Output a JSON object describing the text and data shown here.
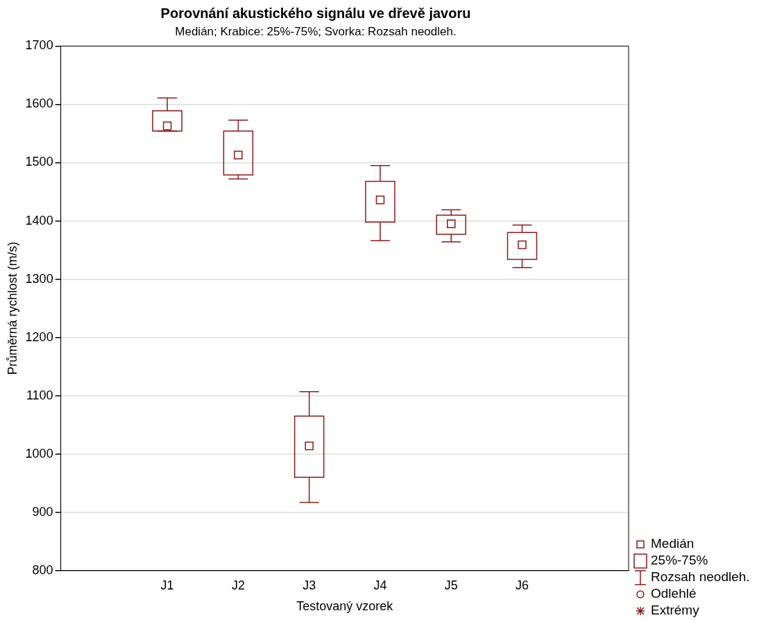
{
  "chart_data": {
    "type": "box",
    "title": "Porovnání akustického signálu ve dřevě javoru",
    "subtitle": "Medián; Krabice: 25%-75%; Svorka: Rozsah neodleh.",
    "xlabel": "Testovaný vzorek",
    "ylabel": "Průměrná rychlost (m/s)",
    "categories": [
      null,
      "J1",
      "J2",
      "J3",
      "J4",
      "J5",
      "J6",
      null
    ],
    "series": [
      {
        "color": "#8b1a1a",
        "boxes": [
          null,
          {
            "low": 1554,
            "q1": 1554,
            "median": 1563,
            "q3": 1589,
            "high": 1611
          },
          {
            "low": 1472,
            "q1": 1479,
            "median": 1513,
            "q3": 1554,
            "high": 1573
          },
          {
            "low": 917,
            "q1": 960,
            "median": 1014,
            "q3": 1065,
            "high": 1107
          },
          {
            "low": 1366,
            "q1": 1398,
            "median": 1436,
            "q3": 1468,
            "high": 1495
          },
          {
            "low": 1364,
            "q1": 1377,
            "median": 1395,
            "q3": 1410,
            "high": 1419
          },
          {
            "low": 1320,
            "q1": 1334,
            "median": 1359,
            "q3": 1380,
            "high": 1393
          },
          null
        ]
      }
    ],
    "ylim": [
      800,
      1700
    ],
    "yticks": [
      800,
      900,
      1000,
      1100,
      1200,
      1300,
      1400,
      1500,
      1600,
      1700
    ],
    "grid": "y",
    "annotations": [
      "Medián",
      "25%-75%",
      "Rozsah neodleh.",
      "Odlehlé",
      "Extrémy"
    ]
  }
}
